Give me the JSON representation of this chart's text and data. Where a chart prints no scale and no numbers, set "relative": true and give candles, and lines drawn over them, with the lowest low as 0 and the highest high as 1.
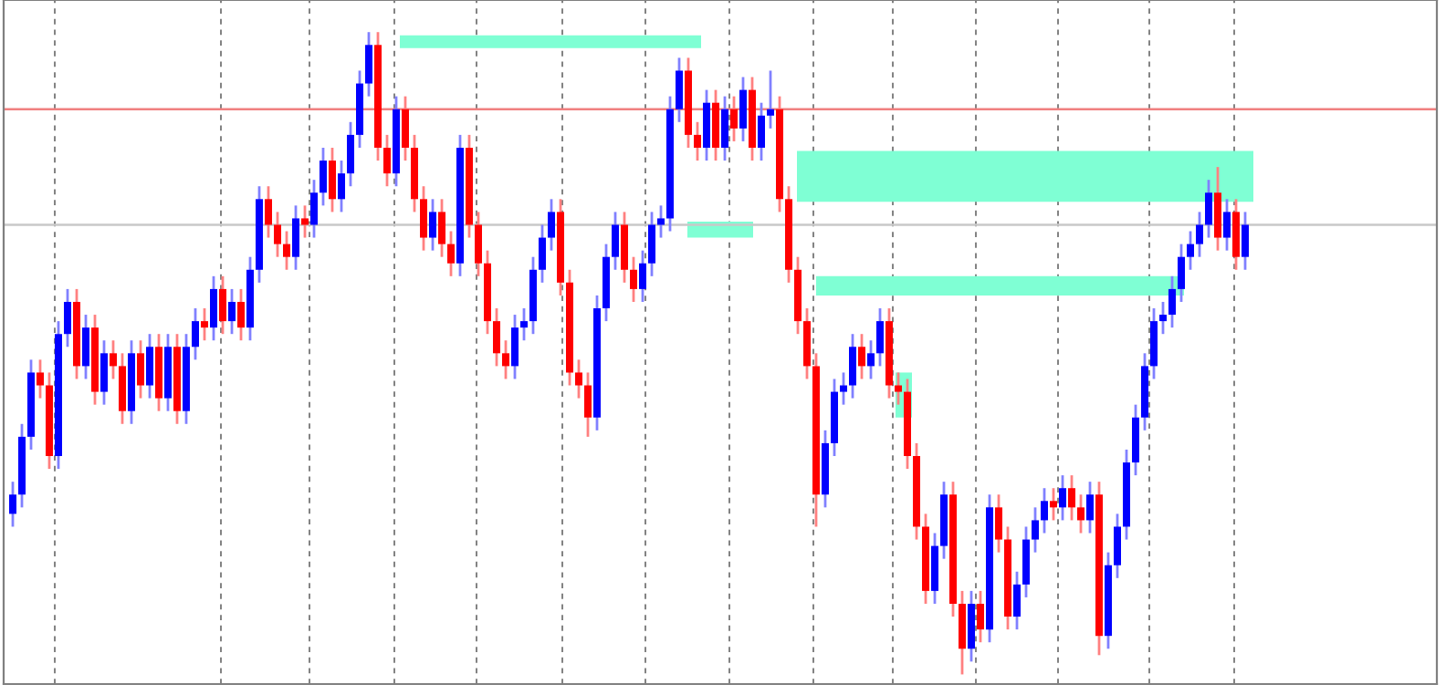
{
  "chart_data": {
    "type": "candlestick",
    "relative": true,
    "categories": [
      null,
      null,
      null,
      null,
      null,
      null,
      null,
      null,
      null,
      null,
      null,
      null,
      null,
      null,
      null,
      null,
      null,
      null,
      null,
      null,
      null,
      null,
      null,
      null,
      null,
      null,
      null,
      null,
      null,
      null,
      null,
      null,
      null,
      null,
      null,
      null,
      null,
      null,
      null,
      null,
      null,
      null,
      null,
      null,
      null,
      null,
      null,
      null,
      null,
      null,
      null,
      null,
      null,
      null,
      null,
      null,
      null,
      null,
      null,
      null,
      null,
      null,
      null,
      null,
      null,
      null,
      null,
      null,
      null,
      null,
      null,
      null,
      null,
      null,
      null,
      null,
      null,
      null,
      null,
      null,
      null,
      null,
      null,
      null,
      null,
      null,
      null,
      null,
      null,
      null,
      null,
      null,
      null,
      null,
      null,
      null,
      null,
      null,
      null,
      null,
      null,
      null,
      null,
      null,
      null,
      null,
      null,
      null,
      null,
      null,
      null,
      null,
      null,
      null,
      null,
      null,
      null,
      null,
      null,
      null,
      null,
      null,
      null,
      null,
      null,
      null,
      null,
      null,
      null,
      null,
      null,
      null,
      null,
      null,
      null,
      null
    ],
    "ohlc": [
      [
        0.25,
        0.3,
        0.23,
        0.28
      ],
      [
        0.28,
        0.39,
        0.26,
        0.37
      ],
      [
        0.37,
        0.49,
        0.35,
        0.47
      ],
      [
        0.47,
        0.49,
        0.43,
        0.45
      ],
      [
        0.45,
        0.47,
        0.32,
        0.34
      ],
      [
        0.34,
        0.55,
        0.32,
        0.53
      ],
      [
        0.53,
        0.6,
        0.51,
        0.58
      ],
      [
        0.58,
        0.6,
        0.46,
        0.48
      ],
      [
        0.48,
        0.56,
        0.46,
        0.54
      ],
      [
        0.54,
        0.56,
        0.42,
        0.44
      ],
      [
        0.44,
        0.52,
        0.42,
        0.5
      ],
      [
        0.5,
        0.52,
        0.46,
        0.48
      ],
      [
        0.48,
        0.5,
        0.39,
        0.41
      ],
      [
        0.41,
        0.52,
        0.39,
        0.5
      ],
      [
        0.5,
        0.52,
        0.43,
        0.45
      ],
      [
        0.45,
        0.53,
        0.43,
        0.51
      ],
      [
        0.51,
        0.53,
        0.41,
        0.43
      ],
      [
        0.43,
        0.53,
        0.41,
        0.51
      ],
      [
        0.51,
        0.53,
        0.39,
        0.41
      ],
      [
        0.41,
        0.53,
        0.39,
        0.51
      ],
      [
        0.51,
        0.57,
        0.49,
        0.55
      ],
      [
        0.55,
        0.57,
        0.52,
        0.54
      ],
      [
        0.54,
        0.62,
        0.52,
        0.6
      ],
      [
        0.6,
        0.62,
        0.53,
        0.55
      ],
      [
        0.55,
        0.6,
        0.53,
        0.58
      ],
      [
        0.58,
        0.6,
        0.52,
        0.54
      ],
      [
        0.54,
        0.65,
        0.52,
        0.63
      ],
      [
        0.63,
        0.76,
        0.61,
        0.74
      ],
      [
        0.74,
        0.76,
        0.68,
        0.7
      ],
      [
        0.7,
        0.72,
        0.65,
        0.67
      ],
      [
        0.67,
        0.69,
        0.63,
        0.65
      ],
      [
        0.65,
        0.73,
        0.63,
        0.71
      ],
      [
        0.71,
        0.73,
        0.68,
        0.7
      ],
      [
        0.7,
        0.77,
        0.68,
        0.75
      ],
      [
        0.75,
        0.82,
        0.73,
        0.8
      ],
      [
        0.8,
        0.82,
        0.72,
        0.74
      ],
      [
        0.74,
        0.8,
        0.72,
        0.78
      ],
      [
        0.78,
        0.86,
        0.76,
        0.84
      ],
      [
        0.84,
        0.94,
        0.82,
        0.92
      ],
      [
        0.92,
        1.0,
        0.9,
        0.98
      ],
      [
        0.98,
        1.0,
        0.8,
        0.82
      ],
      [
        0.82,
        0.84,
        0.76,
        0.78
      ],
      [
        0.78,
        0.9,
        0.76,
        0.88
      ],
      [
        0.88,
        0.9,
        0.8,
        0.82
      ],
      [
        0.82,
        0.84,
        0.72,
        0.74
      ],
      [
        0.74,
        0.76,
        0.66,
        0.68
      ],
      [
        0.68,
        0.74,
        0.66,
        0.72
      ],
      [
        0.72,
        0.74,
        0.65,
        0.67
      ],
      [
        0.67,
        0.69,
        0.62,
        0.64
      ],
      [
        0.64,
        0.84,
        0.62,
        0.82
      ],
      [
        0.82,
        0.84,
        0.68,
        0.7
      ],
      [
        0.7,
        0.72,
        0.62,
        0.64
      ],
      [
        0.64,
        0.66,
        0.53,
        0.55
      ],
      [
        0.55,
        0.57,
        0.48,
        0.5
      ],
      [
        0.5,
        0.52,
        0.46,
        0.48
      ],
      [
        0.48,
        0.56,
        0.46,
        0.54
      ],
      [
        0.54,
        0.57,
        0.52,
        0.55
      ],
      [
        0.55,
        0.65,
        0.53,
        0.63
      ],
      [
        0.63,
        0.7,
        0.61,
        0.68
      ],
      [
        0.68,
        0.74,
        0.66,
        0.72
      ],
      [
        0.72,
        0.74,
        0.59,
        0.61
      ],
      [
        0.61,
        0.63,
        0.45,
        0.47
      ],
      [
        0.47,
        0.49,
        0.43,
        0.45
      ],
      [
        0.45,
        0.47,
        0.37,
        0.4
      ],
      [
        0.4,
        0.59,
        0.38,
        0.57
      ],
      [
        0.57,
        0.67,
        0.55,
        0.65
      ],
      [
        0.65,
        0.72,
        0.63,
        0.7
      ],
      [
        0.7,
        0.72,
        0.61,
        0.63
      ],
      [
        0.63,
        0.65,
        0.58,
        0.6
      ],
      [
        0.6,
        0.66,
        0.58,
        0.64
      ],
      [
        0.64,
        0.72,
        0.62,
        0.7
      ],
      [
        0.7,
        0.73,
        0.68,
        0.71
      ],
      [
        0.71,
        0.9,
        0.69,
        0.88
      ],
      [
        0.88,
        0.96,
        0.86,
        0.94
      ],
      [
        0.94,
        0.96,
        0.82,
        0.84
      ],
      [
        0.84,
        0.86,
        0.8,
        0.82
      ],
      [
        0.82,
        0.91,
        0.8,
        0.89
      ],
      [
        0.89,
        0.91,
        0.8,
        0.82
      ],
      [
        0.82,
        0.9,
        0.8,
        0.88
      ],
      [
        0.88,
        0.9,
        0.83,
        0.85
      ],
      [
        0.85,
        0.93,
        0.83,
        0.91
      ],
      [
        0.91,
        0.93,
        0.8,
        0.82
      ],
      [
        0.82,
        0.89,
        0.8,
        0.87
      ],
      [
        0.87,
        0.94,
        0.85,
        0.88
      ],
      [
        0.88,
        0.9,
        0.72,
        0.74
      ],
      [
        0.74,
        0.76,
        0.61,
        0.63
      ],
      [
        0.63,
        0.65,
        0.53,
        0.55
      ],
      [
        0.55,
        0.57,
        0.46,
        0.48
      ],
      [
        0.48,
        0.5,
        0.23,
        0.28
      ],
      [
        0.28,
        0.38,
        0.26,
        0.36
      ],
      [
        0.36,
        0.46,
        0.34,
        0.44
      ],
      [
        0.44,
        0.47,
        0.42,
        0.45
      ],
      [
        0.45,
        0.53,
        0.43,
        0.51
      ],
      [
        0.51,
        0.53,
        0.46,
        0.48
      ],
      [
        0.48,
        0.52,
        0.46,
        0.5
      ],
      [
        0.5,
        0.57,
        0.48,
        0.55
      ],
      [
        0.55,
        0.57,
        0.43,
        0.45
      ],
      [
        0.45,
        0.47,
        0.42,
        0.44
      ],
      [
        0.44,
        0.46,
        0.32,
        0.34
      ],
      [
        0.34,
        0.36,
        0.21,
        0.23
      ],
      [
        0.23,
        0.25,
        0.11,
        0.13
      ],
      [
        0.13,
        0.22,
        0.11,
        0.2
      ],
      [
        0.2,
        0.3,
        0.18,
        0.28
      ],
      [
        0.28,
        0.3,
        0.09,
        0.11
      ],
      [
        0.11,
        0.13,
        0.0,
        0.04
      ],
      [
        0.04,
        0.13,
        0.02,
        0.11
      ],
      [
        0.11,
        0.13,
        0.05,
        0.07
      ],
      [
        0.07,
        0.28,
        0.05,
        0.26
      ],
      [
        0.26,
        0.28,
        0.19,
        0.21
      ],
      [
        0.21,
        0.23,
        0.07,
        0.09
      ],
      [
        0.09,
        0.16,
        0.07,
        0.14
      ],
      [
        0.14,
        0.23,
        0.12,
        0.21
      ],
      [
        0.21,
        0.26,
        0.19,
        0.24
      ],
      [
        0.24,
        0.29,
        0.22,
        0.27
      ],
      [
        0.27,
        0.29,
        0.24,
        0.26
      ],
      [
        0.26,
        0.31,
        0.24,
        0.29
      ],
      [
        0.29,
        0.31,
        0.24,
        0.26
      ],
      [
        0.26,
        0.28,
        0.22,
        0.24
      ],
      [
        0.24,
        0.3,
        0.22,
        0.28
      ],
      [
        0.28,
        0.3,
        0.03,
        0.06
      ],
      [
        0.06,
        0.19,
        0.04,
        0.17
      ],
      [
        0.17,
        0.25,
        0.15,
        0.23
      ],
      [
        0.23,
        0.35,
        0.21,
        0.33
      ],
      [
        0.33,
        0.42,
        0.31,
        0.4
      ],
      [
        0.4,
        0.5,
        0.38,
        0.48
      ],
      [
        0.48,
        0.57,
        0.46,
        0.55
      ],
      [
        0.55,
        0.58,
        0.53,
        0.56
      ],
      [
        0.56,
        0.62,
        0.54,
        0.6
      ],
      [
        0.6,
        0.67,
        0.58,
        0.65
      ],
      [
        0.65,
        0.69,
        0.63,
        0.67
      ],
      [
        0.67,
        0.72,
        0.65,
        0.7
      ],
      [
        0.7,
        0.77,
        0.68,
        0.75
      ],
      [
        0.75,
        0.79,
        0.66,
        0.68
      ],
      [
        0.68,
        0.74,
        0.66,
        0.72
      ],
      [
        0.72,
        0.74,
        0.63,
        0.65
      ],
      [
        0.65,
        0.72,
        0.63,
        0.7
      ]
    ],
    "ref_lines": [
      {
        "axis": "y",
        "value": 0.88,
        "color": "#f08080"
      },
      {
        "axis": "y",
        "value": 0.7,
        "color": "#c8c8c8"
      }
    ]
  }
}
